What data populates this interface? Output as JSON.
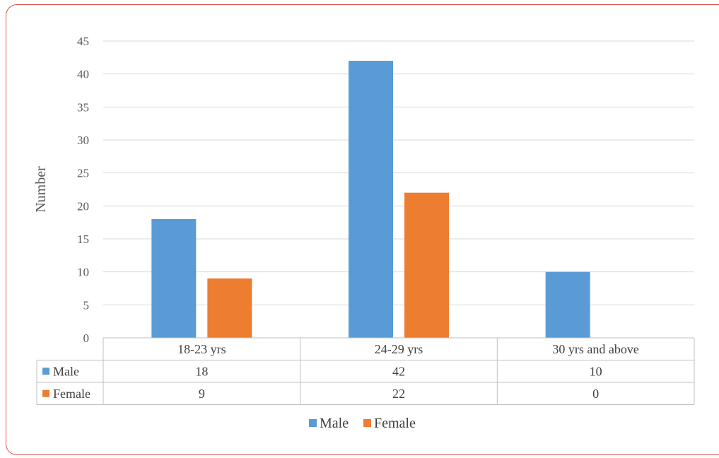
{
  "chart_data": {
    "type": "bar",
    "title": "",
    "xlabel": "",
    "ylabel": "Number",
    "ylim": [
      0,
      45
    ],
    "yticks": [
      0,
      5,
      10,
      15,
      20,
      25,
      30,
      35,
      40,
      45
    ],
    "grid": true,
    "legend": "bottom",
    "data_table": true,
    "categories": [
      "18-23 yrs",
      "24-29 yrs",
      "30 yrs and above"
    ],
    "series": [
      {
        "name": "Male",
        "color": "#5b9bd5",
        "values": [
          18,
          42,
          10
        ]
      },
      {
        "name": "Female",
        "color": "#ed7d31",
        "values": [
          9,
          22,
          0
        ]
      }
    ]
  }
}
